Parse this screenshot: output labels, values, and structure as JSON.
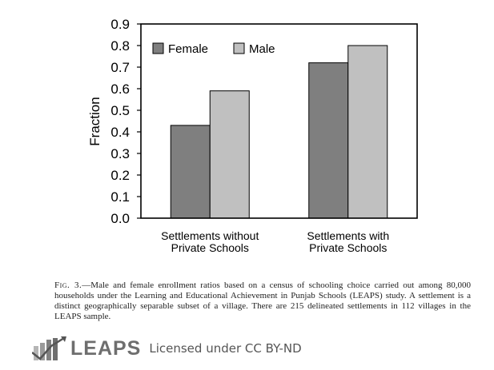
{
  "chart_data": {
    "type": "bar",
    "ylabel": "Fraction",
    "ylim": [
      0,
      0.9
    ],
    "yticks": [
      "0.0",
      "0.1",
      "0.2",
      "0.3",
      "0.4",
      "0.5",
      "0.6",
      "0.7",
      "0.8",
      "0.9"
    ],
    "categories": [
      [
        "Settlements without",
        "Private Schools"
      ],
      [
        "Settlements with",
        "Private Schools"
      ]
    ],
    "series": [
      {
        "name": "Female",
        "color": "#7f7f7f",
        "values": [
          0.43,
          0.72
        ]
      },
      {
        "name": "Male",
        "color": "#c0c0c0",
        "values": [
          0.59,
          0.8
        ]
      }
    ],
    "legend": "top-left",
    "grid": false
  },
  "caption": {
    "label": "Fig. 3.",
    "text": "—Male and female enrollment ratios based on a census of schooling choice carried out among 80,000 households under the Learning and Educational Achievement in Punjab Schools (LEAPS) study. A settlement is a distinct geographically separable subset of a village. There are 215 delineated settlements in 112 villages in the LEAPS sample."
  },
  "footer": {
    "logo_text": "LEAPS",
    "license": "Licensed under CC BY-ND",
    "logo_icon": "bar-chart-arrow-icon"
  }
}
